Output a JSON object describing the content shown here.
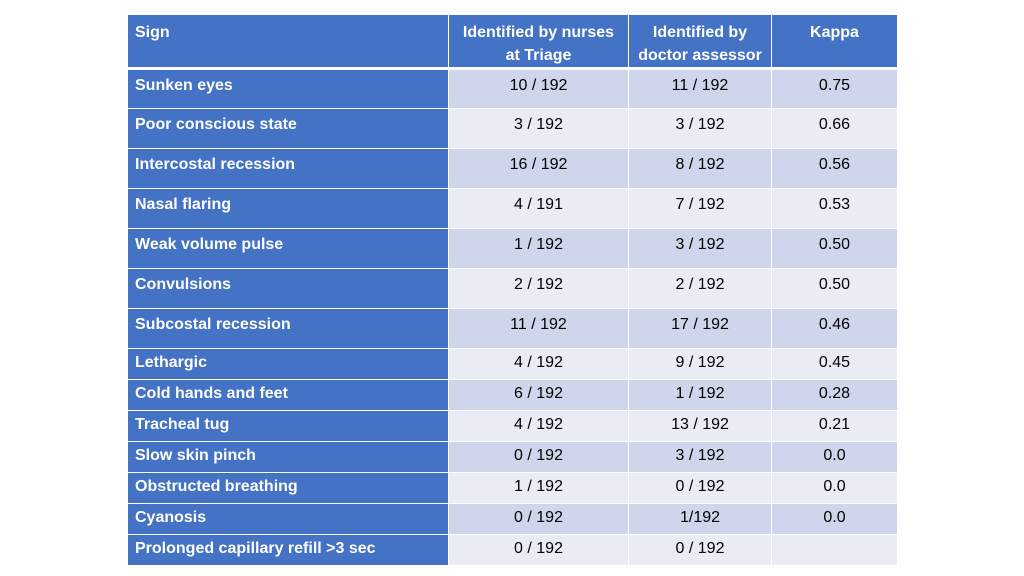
{
  "table": {
    "headers": {
      "sign": "Sign",
      "nurses_line1": "Identified by nurses",
      "nurses_line2": "at Triage",
      "doctor_line1": "Identified by",
      "doctor_line2": "doctor assessor",
      "kappa": "Kappa"
    },
    "rows": [
      {
        "sign": "Sunken eyes",
        "nurses": "10 / 192",
        "doctor": "11 / 192",
        "kappa": "0.75"
      },
      {
        "sign": "Poor conscious state",
        "nurses": "3 / 192",
        "doctor": "3 / 192",
        "kappa": "0.66"
      },
      {
        "sign": "Intercostal recession",
        "nurses": "16 / 192",
        "doctor": "8 / 192",
        "kappa": "0.56"
      },
      {
        "sign": "Nasal flaring",
        "nurses": "4 / 191",
        "doctor": "7 / 192",
        "kappa": "0.53"
      },
      {
        "sign": "Weak volume pulse",
        "nurses": "1 / 192",
        "doctor": "3 / 192",
        "kappa": "0.50"
      },
      {
        "sign": "Convulsions",
        "nurses": "2 / 192",
        "doctor": "2 / 192",
        "kappa": "0.50"
      },
      {
        "sign": "Subcostal recession",
        "nurses": "11 / 192",
        "doctor": "17 / 192",
        "kappa": "0.46"
      },
      {
        "sign": "Lethargic",
        "nurses": "4 / 192",
        "doctor": "9 / 192",
        "kappa": "0.45"
      },
      {
        "sign": "Cold hands and feet",
        "nurses": "6 / 192",
        "doctor": "1 / 192",
        "kappa": "0.28"
      },
      {
        "sign": "Tracheal tug",
        "nurses": "4 / 192",
        "doctor": "13 / 192",
        "kappa": "0.21"
      },
      {
        "sign": "Slow skin pinch",
        "nurses": "0 / 192",
        "doctor": "3 / 192",
        "kappa": "0.0"
      },
      {
        "sign": "Obstructed breathing",
        "nurses": "1 / 192",
        "doctor": "0 / 192",
        "kappa": "0.0"
      },
      {
        "sign": "Cyanosis",
        "nurses": "0 / 192",
        "doctor": "1/192",
        "kappa": "0.0"
      },
      {
        "sign": "Prolonged capillary refill >3 sec",
        "nurses": "0 / 192",
        "doctor": "0 / 192",
        "kappa": ""
      }
    ]
  },
  "colors": {
    "header_bg": "#4472c4",
    "row_odd_bg": "#cfd5ea",
    "row_even_bg": "#e9ebf5"
  }
}
